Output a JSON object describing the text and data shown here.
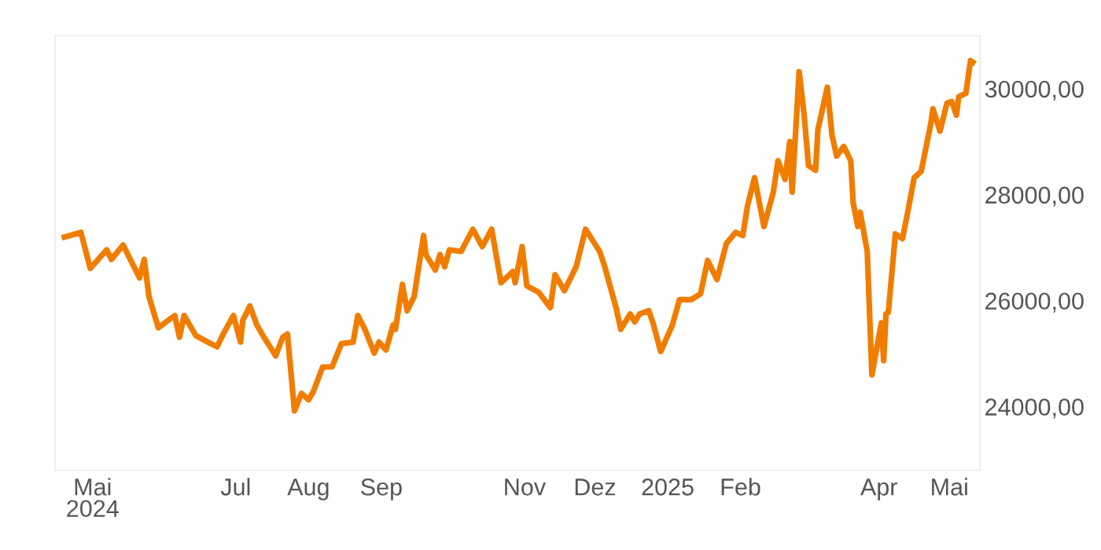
{
  "chart_data": {
    "type": "line",
    "x": [
      "2024-04-19",
      "2024-04-26",
      "2024-04-30",
      "2024-05-07",
      "2024-05-09",
      "2024-05-14",
      "2024-05-21",
      "2024-05-23",
      "2024-05-25",
      "2024-05-29",
      "2024-06-05",
      "2024-06-07",
      "2024-06-09",
      "2024-06-14",
      "2024-06-19",
      "2024-06-23",
      "2024-06-26",
      "2024-06-30",
      "2024-07-03",
      "2024-07-04",
      "2024-07-07",
      "2024-07-10",
      "2024-07-13",
      "2024-07-18",
      "2024-07-21",
      "2024-07-23",
      "2024-07-26",
      "2024-07-29",
      "2024-08-01",
      "2024-08-03",
      "2024-08-07",
      "2024-08-11",
      "2024-08-15",
      "2024-08-20",
      "2024-08-22",
      "2024-08-25",
      "2024-08-29",
      "2024-08-31",
      "2024-09-03",
      "2024-09-06",
      "2024-09-07",
      "2024-09-10",
      "2024-09-12",
      "2024-09-15",
      "2024-09-19",
      "2024-09-20",
      "2024-09-24",
      "2024-09-26",
      "2024-09-28",
      "2024-09-30",
      "2024-10-05",
      "2024-10-10",
      "2024-10-14",
      "2024-10-18",
      "2024-10-22",
      "2024-10-27",
      "2024-10-28",
      "2024-10-31",
      "2024-11-02",
      "2024-11-07",
      "2024-11-12",
      "2024-11-14",
      "2024-11-18",
      "2024-11-23",
      "2024-11-27",
      "2024-12-03",
      "2024-12-05",
      "2024-12-10",
      "2024-12-12",
      "2024-12-16",
      "2024-12-18",
      "2024-12-20",
      "2024-12-24",
      "2024-12-26",
      "2024-12-29",
      "2025-01-01",
      "2025-01-03",
      "2025-01-06",
      "2025-01-11",
      "2025-01-15",
      "2025-01-18",
      "2025-01-22",
      "2025-01-26",
      "2025-01-30",
      "2025-02-02",
      "2025-02-04",
      "2025-02-07",
      "2025-02-11",
      "2025-02-15",
      "2025-02-17",
      "2025-02-20",
      "2025-02-22",
      "2025-02-23",
      "2025-02-26",
      "2025-02-28",
      "2025-03-02",
      "2025-03-05",
      "2025-03-06",
      "2025-03-10",
      "2025-03-12",
      "2025-03-14",
      "2025-03-17",
      "2025-03-20",
      "2025-03-21",
      "2025-03-23",
      "2025-03-24",
      "2025-03-27",
      "2025-03-29",
      "2025-04-02",
      "2025-04-03",
      "2025-04-04",
      "2025-04-05",
      "2025-04-08",
      "2025-04-11",
      "2025-04-13",
      "2025-04-16",
      "2025-04-19",
      "2025-04-23",
      "2025-04-24",
      "2025-04-27",
      "2025-04-30",
      "2025-05-02",
      "2025-05-04",
      "2025-05-05",
      "2025-05-08",
      "2025-05-10",
      "2025-05-11"
    ],
    "series": [
      {
        "color": "#f07d00",
        "values": [
          27200,
          27290,
          26610,
          26960,
          26780,
          27050,
          26430,
          26780,
          26080,
          25490,
          25720,
          25310,
          25720,
          25340,
          25220,
          25130,
          25400,
          25720,
          25220,
          25630,
          25900,
          25540,
          25310,
          24960,
          25310,
          25370,
          23920,
          24250,
          24130,
          24280,
          24750,
          24750,
          25190,
          25220,
          25720,
          25460,
          25010,
          25220,
          25070,
          25540,
          25460,
          26310,
          25810,
          26080,
          27230,
          26870,
          26580,
          26870,
          26640,
          26960,
          26930,
          27350,
          27020,
          27350,
          26340,
          26550,
          26340,
          27020,
          26280,
          26160,
          25870,
          26490,
          26190,
          26640,
          27350,
          26930,
          26670,
          25870,
          25460,
          25750,
          25600,
          25750,
          25810,
          25540,
          25040,
          25340,
          25540,
          26020,
          26020,
          26130,
          26760,
          26400,
          27080,
          27290,
          27230,
          27790,
          28320,
          27400,
          28050,
          28640,
          28290,
          29000,
          28050,
          30320,
          29560,
          28550,
          28460,
          29230,
          30030,
          29120,
          28730,
          28910,
          28640,
          27850,
          27400,
          27670,
          26930,
          24600,
          25580,
          24870,
          25750,
          25780,
          27260,
          27170,
          27610,
          28320,
          28440,
          29320,
          29620,
          29200,
          29730,
          29760,
          29500,
          29850,
          29910,
          30530,
          30500
        ]
      }
    ],
    "xticks": [
      {
        "value": "2024-05-01",
        "label": "Mai\n2024"
      },
      {
        "value": "2024-07-01",
        "label": "Jul"
      },
      {
        "value": "2024-08-01",
        "label": "Aug"
      },
      {
        "value": "2024-09-01",
        "label": "Sep"
      },
      {
        "value": "2024-11-01",
        "label": "Nov"
      },
      {
        "value": "2024-12-01",
        "label": "Dez"
      },
      {
        "value": "2025-01-01",
        "label": "2025"
      },
      {
        "value": "2025-02-01",
        "label": "Feb"
      },
      {
        "value": "2025-04-01",
        "label": "Apr"
      },
      {
        "value": "2025-05-01",
        "label": "Mai"
      }
    ],
    "xlim": [
      "2024-04-15",
      "2025-05-14"
    ],
    "ylim": [
      22800,
      31000
    ],
    "yticks": [
      {
        "value": 24000,
        "label": "24000,00"
      },
      {
        "value": 26000,
        "label": "26000,00"
      },
      {
        "value": 28000,
        "label": "28000,00"
      },
      {
        "value": 30000,
        "label": "30000,00"
      }
    ],
    "grid": false,
    "legend": false,
    "marker": "none",
    "line_style": "solid"
  }
}
